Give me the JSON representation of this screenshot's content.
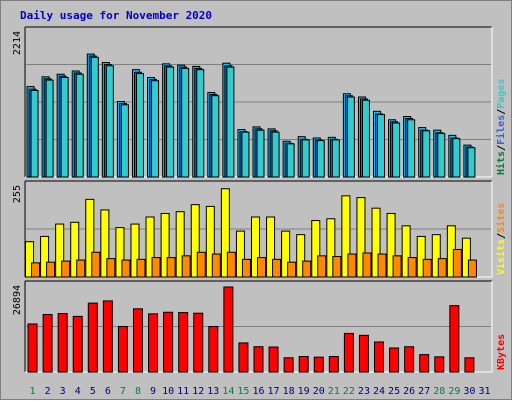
{
  "header": {
    "title": "Daily usage for November 2020"
  },
  "colors": {
    "hits": "#00ccff",
    "files": "#3366cc",
    "pages": "#33cccc",
    "visits": "#ffff00",
    "sites": "#ff8800",
    "kbytes": "#ff0000",
    "weekend": "#008040",
    "weekday": "#000080"
  },
  "chart_data": [
    {
      "type": "bar",
      "title": "Daily usage for November 2020",
      "categories": [
        "1",
        "2",
        "3",
        "4",
        "5",
        "6",
        "7",
        "8",
        "9",
        "10",
        "11",
        "12",
        "13",
        "14",
        "15",
        "16",
        "17",
        "18",
        "19",
        "20",
        "21",
        "22",
        "23",
        "24",
        "25",
        "26",
        "27",
        "28",
        "29",
        "30",
        "31"
      ],
      "ylabel_max": "2214",
      "legend": [
        "Pages",
        "Files",
        "Hits"
      ],
      "ylim": [
        0,
        2214
      ],
      "series": [
        {
          "name": "Hits",
          "values": [
            1390,
            1540,
            1580,
            1630,
            1890,
            1760,
            1160,
            1650,
            1530,
            1740,
            1720,
            1700,
            1300,
            1750,
            730,
            770,
            740,
            550,
            620,
            600,
            610,
            1280,
            1230,
            1010,
            880,
            930,
            760,
            720,
            640,
            490,
            0
          ]
        },
        {
          "name": "Files",
          "values": [
            1350,
            1510,
            1550,
            1600,
            1860,
            1730,
            1130,
            1610,
            1500,
            1710,
            1690,
            1670,
            1270,
            1710,
            700,
            740,
            710,
            520,
            580,
            570,
            580,
            1250,
            1200,
            970,
            850,
            900,
            720,
            680,
            600,
            460,
            0
          ]
        },
        {
          "name": "Pages",
          "values": [
            1330,
            1490,
            1530,
            1580,
            1840,
            1710,
            1110,
            1590,
            1480,
            1690,
            1670,
            1650,
            1250,
            1690,
            690,
            720,
            690,
            510,
            570,
            560,
            570,
            1230,
            1180,
            960,
            830,
            880,
            710,
            670,
            590,
            450,
            0
          ]
        }
      ]
    },
    {
      "type": "bar",
      "categories": [
        "1",
        "2",
        "3",
        "4",
        "5",
        "6",
        "7",
        "8",
        "9",
        "10",
        "11",
        "12",
        "13",
        "14",
        "15",
        "16",
        "17",
        "18",
        "19",
        "20",
        "21",
        "22",
        "23",
        "24",
        "25",
        "26",
        "27",
        "28",
        "29",
        "30",
        "31"
      ],
      "ylabel_max": "255",
      "legend": [
        "Sites",
        "Visits"
      ],
      "ylim": [
        0,
        255
      ],
      "series": [
        {
          "name": "Visits",
          "values": [
            100,
            115,
            150,
            155,
            220,
            190,
            140,
            150,
            170,
            180,
            185,
            205,
            200,
            250,
            130,
            170,
            170,
            130,
            120,
            160,
            165,
            230,
            225,
            195,
            180,
            145,
            115,
            120,
            145,
            110,
            0
          ]
        },
        {
          "name": "Sites",
          "values": [
            40,
            42,
            45,
            48,
            70,
            52,
            48,
            50,
            55,
            55,
            60,
            70,
            65,
            70,
            50,
            55,
            50,
            42,
            45,
            60,
            58,
            65,
            68,
            65,
            60,
            55,
            50,
            52,
            78,
            48,
            0
          ]
        }
      ]
    },
    {
      "type": "bar",
      "categories": [
        "1",
        "2",
        "3",
        "4",
        "5",
        "6",
        "7",
        "8",
        "9",
        "10",
        "11",
        "12",
        "13",
        "14",
        "15",
        "16",
        "17",
        "18",
        "19",
        "20",
        "21",
        "22",
        "23",
        "24",
        "25",
        "26",
        "27",
        "28",
        "29",
        "30",
        "31"
      ],
      "ylabel_max": "26894",
      "legend": [
        "KBytes"
      ],
      "ylim": [
        0,
        26894
      ],
      "series": [
        {
          "name": "KBytes",
          "values": [
            15200,
            18200,
            18500,
            17600,
            21800,
            22500,
            14400,
            20000,
            18400,
            18900,
            18800,
            18600,
            14400,
            26894,
            9200,
            8000,
            7900,
            4500,
            4900,
            4700,
            4900,
            12200,
            11600,
            9500,
            7600,
            8000,
            5500,
            4800,
            21000,
            4500,
            0
          ]
        }
      ]
    }
  ],
  "xaxis": {
    "labels": [
      "1",
      "2",
      "3",
      "4",
      "5",
      "6",
      "7",
      "8",
      "9",
      "10",
      "11",
      "12",
      "13",
      "14",
      "15",
      "16",
      "17",
      "18",
      "19",
      "20",
      "21",
      "22",
      "23",
      "24",
      "25",
      "26",
      "27",
      "28",
      "29",
      "30",
      "31"
    ],
    "weekend": [
      true,
      false,
      false,
      false,
      false,
      false,
      true,
      true,
      false,
      false,
      false,
      false,
      false,
      true,
      true,
      false,
      false,
      false,
      false,
      false,
      true,
      true,
      false,
      false,
      false,
      false,
      false,
      true,
      true,
      false,
      false
    ]
  }
}
